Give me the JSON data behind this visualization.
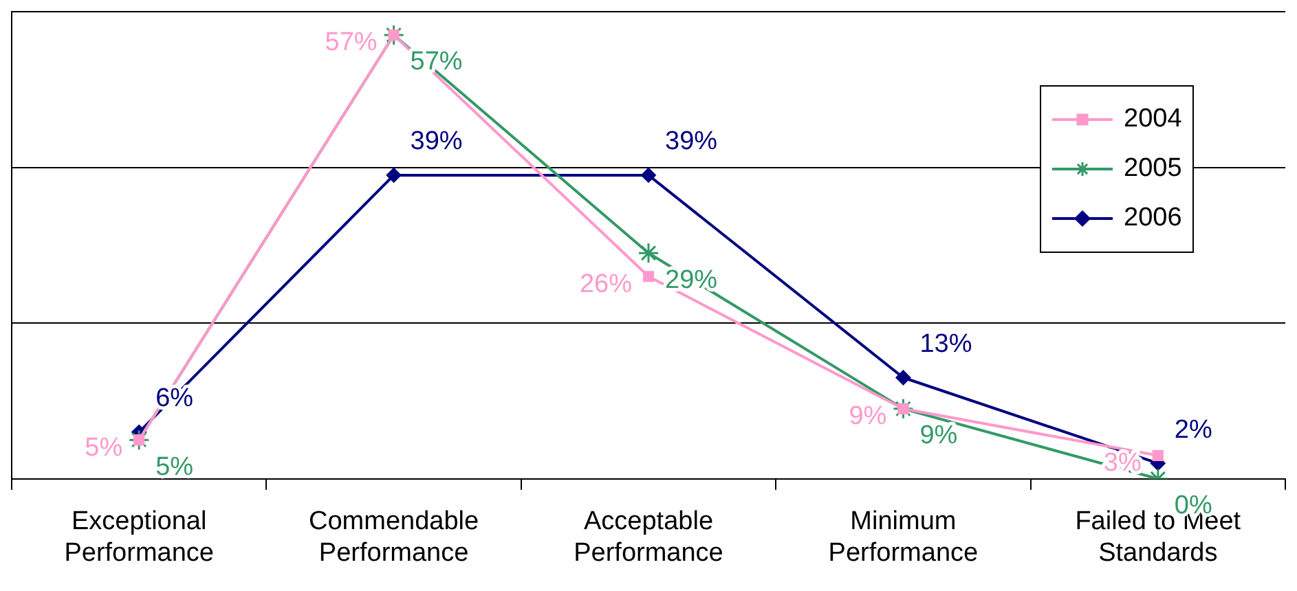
{
  "chart_data": {
    "type": "line",
    "categories": [
      "Exceptional Performance",
      "Commendable Performance",
      "Acceptable Performance",
      "Minimum Performance",
      "Failed to Meet Standards"
    ],
    "series": [
      {
        "name": "2004",
        "color": "#ff99cc",
        "marker": "square",
        "values": [
          5,
          57,
          26,
          9,
          3
        ],
        "value_labels": [
          "5%",
          "57%",
          "26%",
          "9%",
          "3%"
        ]
      },
      {
        "name": "2005",
        "color": "#339966",
        "marker": "cross",
        "values": [
          5,
          57,
          29,
          9,
          0
        ],
        "value_labels": [
          "5%",
          "57%",
          "29%",
          "9%",
          "0%"
        ]
      },
      {
        "name": "2006",
        "color": "#000080",
        "marker": "diamond",
        "values": [
          6,
          39,
          39,
          13,
          2
        ],
        "value_labels": [
          "6%",
          "39%",
          "39%",
          "13%",
          "2%"
        ]
      }
    ],
    "ylim": [
      0,
      60
    ],
    "yticks": [
      0,
      20,
      40,
      60
    ],
    "grid": "y",
    "tick_labels": "x",
    "legend": "right",
    "line_style": "solid"
  }
}
